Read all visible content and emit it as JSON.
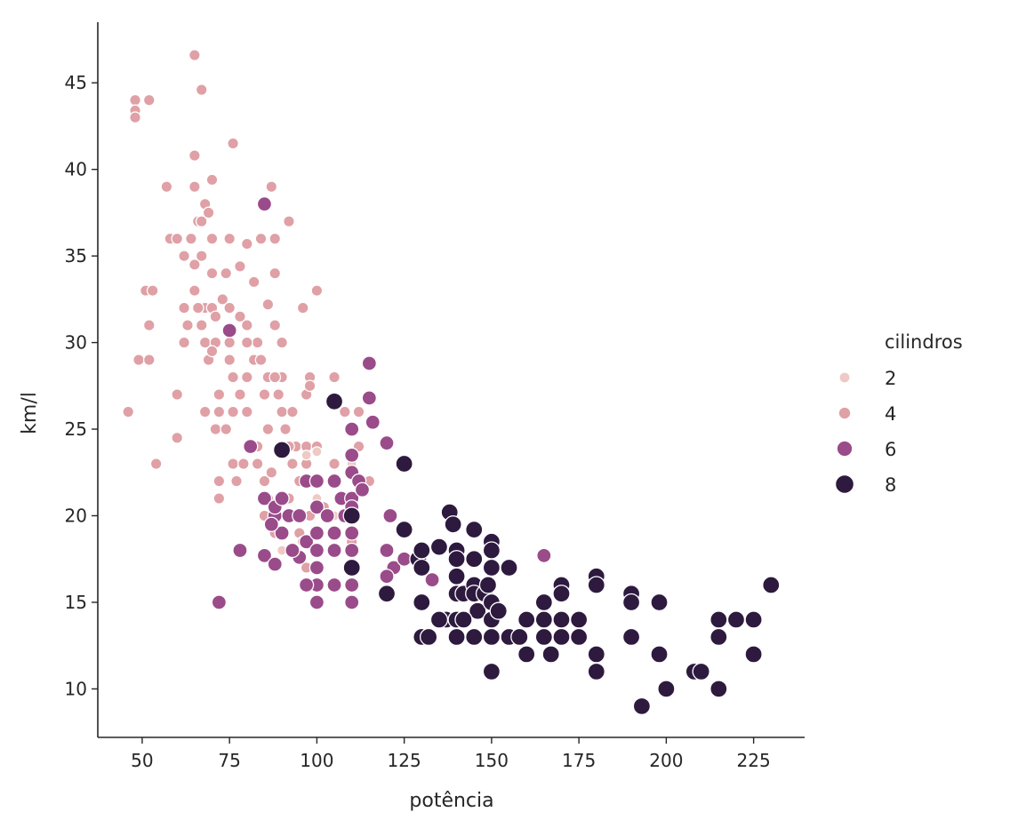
{
  "chart_data": {
    "type": "scatter",
    "xlabel": "potência",
    "ylabel": "km/l",
    "xlim": [
      37.3,
      239.6
    ],
    "ylim": [
      7.2,
      48.5
    ],
    "xticks": [
      50,
      75,
      100,
      125,
      150,
      175,
      200,
      225
    ],
    "yticks": [
      10,
      15,
      20,
      25,
      30,
      35,
      40,
      45
    ],
    "grid": false,
    "legend": {
      "title": "cilindros",
      "placement": "right"
    },
    "series": [
      {
        "name": "4",
        "color": "#dfa0a6",
        "points": [
          [
            46,
            26
          ],
          [
            48,
            44
          ],
          [
            48,
            43.4
          ],
          [
            48,
            43
          ],
          [
            52,
            44
          ],
          [
            49,
            29
          ],
          [
            52,
            29
          ],
          [
            51,
            33
          ],
          [
            53,
            33
          ],
          [
            52,
            31
          ],
          [
            54,
            23
          ],
          [
            57,
            39
          ],
          [
            58,
            36
          ],
          [
            60,
            36
          ],
          [
            60,
            24.5
          ],
          [
            60,
            27
          ],
          [
            62,
            32
          ],
          [
            62,
            30
          ],
          [
            63,
            31
          ],
          [
            64,
            36
          ],
          [
            65,
            46.6
          ],
          [
            65,
            39
          ],
          [
            65,
            40.8
          ],
          [
            66,
            37
          ],
          [
            67,
            44.6
          ],
          [
            67,
            35
          ],
          [
            65,
            34.5
          ],
          [
            68,
            32
          ],
          [
            68,
            30
          ],
          [
            68,
            38
          ],
          [
            67,
            37
          ],
          [
            69,
            37.5
          ],
          [
            70,
            34
          ],
          [
            70,
            36
          ],
          [
            70,
            39.4
          ],
          [
            70,
            32
          ],
          [
            69,
            29
          ],
          [
            71,
            31.5
          ],
          [
            71,
            30
          ],
          [
            72,
            27
          ],
          [
            72,
            22
          ],
          [
            72,
            21
          ],
          [
            71,
            25
          ],
          [
            73,
            32.5
          ],
          [
            75,
            32
          ],
          [
            75,
            36
          ],
          [
            76,
            41.5
          ],
          [
            74,
            34
          ],
          [
            75,
            29
          ],
          [
            76,
            28
          ],
          [
            78,
            27
          ],
          [
            78,
            34.4
          ],
          [
            76,
            26
          ],
          [
            76,
            23
          ],
          [
            77,
            22
          ],
          [
            80,
            35.7
          ],
          [
            80,
            28
          ],
          [
            80,
            31
          ],
          [
            82,
            33.5
          ],
          [
            82,
            29
          ],
          [
            83,
            30
          ],
          [
            83,
            24
          ],
          [
            84,
            36
          ],
          [
            85,
            27
          ],
          [
            85,
            22
          ],
          [
            86,
            25
          ],
          [
            86,
            28
          ],
          [
            87,
            39
          ],
          [
            88,
            34
          ],
          [
            88,
            36
          ],
          [
            88,
            31
          ],
          [
            89,
            27
          ],
          [
            90,
            30
          ],
          [
            90,
            26
          ],
          [
            90,
            28
          ],
          [
            91,
            25
          ],
          [
            92,
            37
          ],
          [
            93,
            26
          ],
          [
            93,
            23
          ],
          [
            94,
            24
          ],
          [
            95,
            22
          ],
          [
            96,
            32
          ],
          [
            97,
            27
          ],
          [
            97,
            23
          ],
          [
            97,
            24
          ],
          [
            98,
            28
          ],
          [
            100,
            33
          ],
          [
            100,
            24
          ],
          [
            102,
            20.5
          ],
          [
            105,
            28
          ],
          [
            105,
            23
          ],
          [
            108,
            26
          ],
          [
            110,
            25
          ],
          [
            112,
            26
          ],
          [
            112,
            24
          ],
          [
            115,
            22
          ],
          [
            92,
            21
          ],
          [
            85,
            20
          ],
          [
            88,
            19
          ],
          [
            90,
            18
          ],
          [
            80,
            26
          ],
          [
            79,
            23
          ],
          [
            83,
            23
          ],
          [
            87,
            22.5
          ],
          [
            86,
            21
          ],
          [
            95,
            19
          ],
          [
            96,
            18.5
          ],
          [
            97,
            17
          ],
          [
            98,
            20
          ],
          [
            100,
            21
          ],
          [
            110,
            18.5
          ],
          [
            98,
            27.5
          ],
          [
            75,
            30
          ],
          [
            67,
            31
          ],
          [
            66,
            32
          ],
          [
            70,
            29.5
          ],
          [
            65,
            33
          ],
          [
            62,
            35
          ],
          [
            78,
            31.5
          ],
          [
            80,
            30
          ],
          [
            84,
            29
          ],
          [
            88,
            28
          ],
          [
            92,
            24
          ],
          [
            86,
            32.2
          ],
          [
            72,
            26
          ],
          [
            74,
            25
          ],
          [
            68,
            26
          ]
        ]
      },
      {
        "name": "2",
        "color": "#efc9c4",
        "points": [
          [
            97,
            23.5
          ],
          [
            100,
            23.7
          ],
          [
            100,
            21
          ],
          [
            110,
            23
          ],
          [
            129,
            13
          ],
          [
            90,
            18
          ],
          [
            105,
            20
          ]
        ]
      },
      {
        "name": "6",
        "color": "#9a4b8a",
        "points": [
          [
            85,
            38
          ],
          [
            75,
            30.7
          ],
          [
            72,
            15
          ],
          [
            78,
            18
          ],
          [
            85,
            17.7
          ],
          [
            81,
            24
          ],
          [
            88,
            20
          ],
          [
            85,
            21
          ],
          [
            88,
            20.5
          ],
          [
            90,
            21
          ],
          [
            90,
            19
          ],
          [
            92,
            20
          ],
          [
            95,
            20
          ],
          [
            95,
            17.6
          ],
          [
            97,
            18.5
          ],
          [
            97,
            22
          ],
          [
            100,
            22
          ],
          [
            100,
            20.5
          ],
          [
            100,
            19
          ],
          [
            100,
            18
          ],
          [
            100,
            16
          ],
          [
            100,
            15
          ],
          [
            100,
            17
          ],
          [
            103,
            20
          ],
          [
            105,
            19
          ],
          [
            105,
            18
          ],
          [
            105,
            16
          ],
          [
            105,
            22
          ],
          [
            107,
            21
          ],
          [
            108,
            20
          ],
          [
            110,
            22.5
          ],
          [
            110,
            21
          ],
          [
            110,
            19
          ],
          [
            110,
            18
          ],
          [
            110,
            17
          ],
          [
            110,
            16
          ],
          [
            110,
            15
          ],
          [
            110,
            20.5
          ],
          [
            110,
            25
          ],
          [
            110,
            23.5
          ],
          [
            112,
            22
          ],
          [
            113,
            21.5
          ],
          [
            115,
            28.8
          ],
          [
            115,
            26.8
          ],
          [
            116,
            25.4
          ],
          [
            120,
            24.2
          ],
          [
            121,
            20
          ],
          [
            122,
            17
          ],
          [
            120,
            18
          ],
          [
            120,
            16.5
          ],
          [
            125,
            17.5
          ],
          [
            133,
            16.3
          ],
          [
            165,
            17.7
          ],
          [
            88,
            17.2
          ],
          [
            87,
            19.5
          ],
          [
            93,
            18
          ],
          [
            97,
            16
          ]
        ]
      },
      {
        "name": "8",
        "color": "#2d1a3e",
        "points": [
          [
            105,
            26.6
          ],
          [
            90,
            23.8
          ],
          [
            110,
            20
          ],
          [
            110,
            17
          ],
          [
            125,
            23
          ],
          [
            125,
            19.2
          ],
          [
            120,
            15.5
          ],
          [
            129,
            17.5
          ],
          [
            130,
            18
          ],
          [
            130,
            17
          ],
          [
            130,
            15
          ],
          [
            130,
            13
          ],
          [
            135,
            18.2
          ],
          [
            137,
            14
          ],
          [
            138,
            20.2
          ],
          [
            139,
            19.5
          ],
          [
            140,
            18
          ],
          [
            140,
            17.5
          ],
          [
            140,
            16.5
          ],
          [
            140,
            15.5
          ],
          [
            140,
            14
          ],
          [
            140,
            13
          ],
          [
            142,
            15.5
          ],
          [
            145,
            19.2
          ],
          [
            145,
            17.5
          ],
          [
            145,
            16
          ],
          [
            145,
            15.5
          ],
          [
            145,
            13
          ],
          [
            146,
            14.5
          ],
          [
            148,
            15.5
          ],
          [
            149,
            16
          ],
          [
            150,
            18.5
          ],
          [
            150,
            18
          ],
          [
            150,
            17
          ],
          [
            150,
            15
          ],
          [
            150,
            14
          ],
          [
            150,
            13
          ],
          [
            150,
            11
          ],
          [
            152,
            14.5
          ],
          [
            155,
            17
          ],
          [
            155,
            13
          ],
          [
            158,
            13
          ],
          [
            160,
            14
          ],
          [
            160,
            12
          ],
          [
            165,
            15
          ],
          [
            165,
            14
          ],
          [
            165,
            13
          ],
          [
            167,
            12
          ],
          [
            170,
            16
          ],
          [
            170,
            15.5
          ],
          [
            170,
            13
          ],
          [
            170,
            14
          ],
          [
            175,
            14
          ],
          [
            175,
            13
          ],
          [
            180,
            16.5
          ],
          [
            180,
            16
          ],
          [
            180,
            12
          ],
          [
            180,
            11
          ],
          [
            190,
            15.5
          ],
          [
            190,
            15
          ],
          [
            190,
            13
          ],
          [
            193,
            9
          ],
          [
            198,
            15
          ],
          [
            198,
            12
          ],
          [
            200,
            10
          ],
          [
            208,
            11
          ],
          [
            210,
            11
          ],
          [
            215,
            14
          ],
          [
            215,
            13
          ],
          [
            215,
            10
          ],
          [
            220,
            14
          ],
          [
            225,
            14
          ],
          [
            225,
            12
          ],
          [
            230,
            16
          ],
          [
            135,
            14
          ],
          [
            132,
            13
          ],
          [
            142,
            14
          ]
        ]
      }
    ],
    "legend_entries": [
      {
        "label": "2",
        "color": "#efc9c4"
      },
      {
        "label": "4",
        "color": "#dfa0a6"
      },
      {
        "label": "6",
        "color": "#9a4b8a"
      },
      {
        "label": "8",
        "color": "#2d1a3e"
      }
    ]
  }
}
